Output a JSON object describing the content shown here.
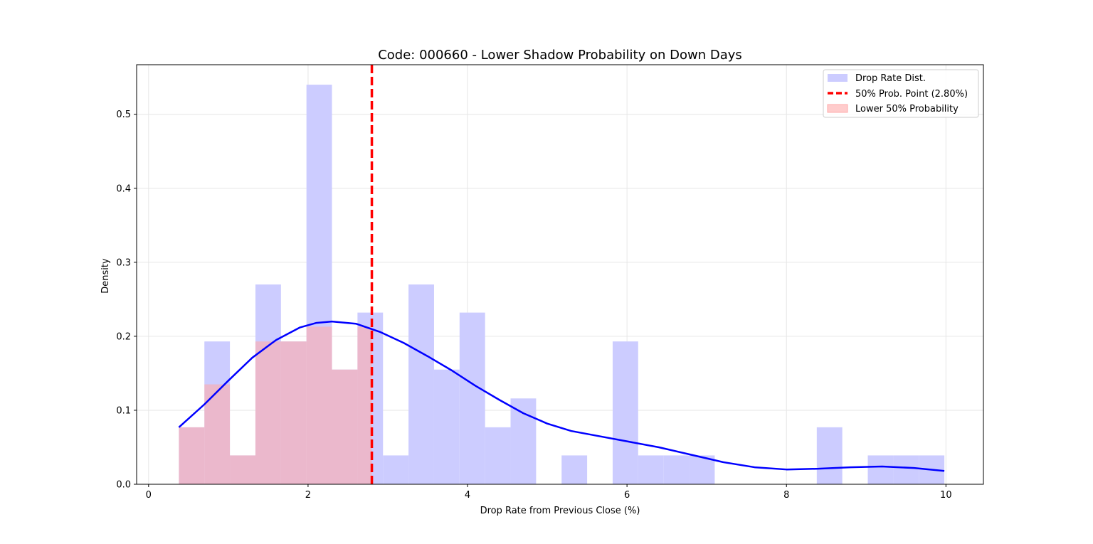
{
  "chart_data": {
    "type": "bar",
    "title": "Code: 000660 - Lower Shadow Probability on Down Days",
    "xlabel": "Drop Rate from Previous Close (%)",
    "ylabel": "Density",
    "xlim": [
      -0.15,
      10.47
    ],
    "ylim": [
      0,
      0.567
    ],
    "xticks": [
      0,
      2,
      4,
      6,
      8,
      10
    ],
    "yticks": [
      0.0,
      0.1,
      0.2,
      0.3,
      0.4,
      0.5
    ],
    "xtick_labels": [
      "0",
      "2",
      "4",
      "6",
      "8",
      "10"
    ],
    "ytick_labels": [
      "0.0",
      "0.1",
      "0.2",
      "0.3",
      "0.4",
      "0.5"
    ],
    "grid": true,
    "legend_position": "top-right",
    "series": [
      {
        "name": "Drop Rate Dist.",
        "kind": "histogram",
        "color": "#ccccff",
        "bin_edges": [
          0.38,
          0.7,
          1.02,
          1.34,
          1.66,
          1.98,
          2.3,
          2.62,
          2.94,
          3.26,
          3.58,
          3.9,
          4.22,
          4.54,
          4.86,
          5.18,
          5.5,
          5.82,
          6.14,
          6.46,
          6.78,
          7.1,
          7.42,
          7.74,
          8.06,
          8.38,
          8.7,
          9.02,
          9.34,
          9.66,
          9.98
        ],
        "values": [
          0.077,
          0.193,
          0.039,
          0.27,
          0.193,
          0.54,
          0.155,
          0.232,
          0.039,
          0.27,
          0.155,
          0.232,
          0.077,
          0.116,
          0,
          0.039,
          0,
          0.193,
          0.039,
          0.039,
          0.039,
          0,
          0,
          0,
          0,
          0.077,
          0,
          0.039,
          0.039,
          0.039
        ]
      },
      {
        "name": "50% Prob. Point (2.80%)",
        "kind": "vline",
        "color": "#ff0000",
        "x": 2.8
      },
      {
        "name": "Lower 50% Probability",
        "kind": "histogram",
        "color": "#ffaaaa",
        "bin_edges": [
          0.38,
          0.7,
          1.02,
          1.34,
          1.66,
          1.98,
          2.3,
          2.62,
          2.8
        ],
        "values": [
          0.077,
          0.135,
          0.039,
          0.193,
          0.193,
          0.213,
          0.155,
          0.213
        ]
      },
      {
        "name": "",
        "kind": "kde",
        "color": "#0000ff",
        "x": [
          0.38,
          0.7,
          1.0,
          1.3,
          1.6,
          1.9,
          2.1,
          2.3,
          2.6,
          2.9,
          3.2,
          3.5,
          3.8,
          4.1,
          4.4,
          4.7,
          5.0,
          5.3,
          5.6,
          6.0,
          6.4,
          6.8,
          7.2,
          7.6,
          8.0,
          8.4,
          8.8,
          9.2,
          9.6,
          9.98
        ],
        "y": [
          0.077,
          0.108,
          0.14,
          0.171,
          0.195,
          0.212,
          0.218,
          0.22,
          0.217,
          0.206,
          0.191,
          0.173,
          0.154,
          0.133,
          0.114,
          0.096,
          0.082,
          0.072,
          0.066,
          0.058,
          0.05,
          0.04,
          0.03,
          0.023,
          0.02,
          0.021,
          0.023,
          0.024,
          0.022,
          0.018
        ]
      }
    ]
  }
}
